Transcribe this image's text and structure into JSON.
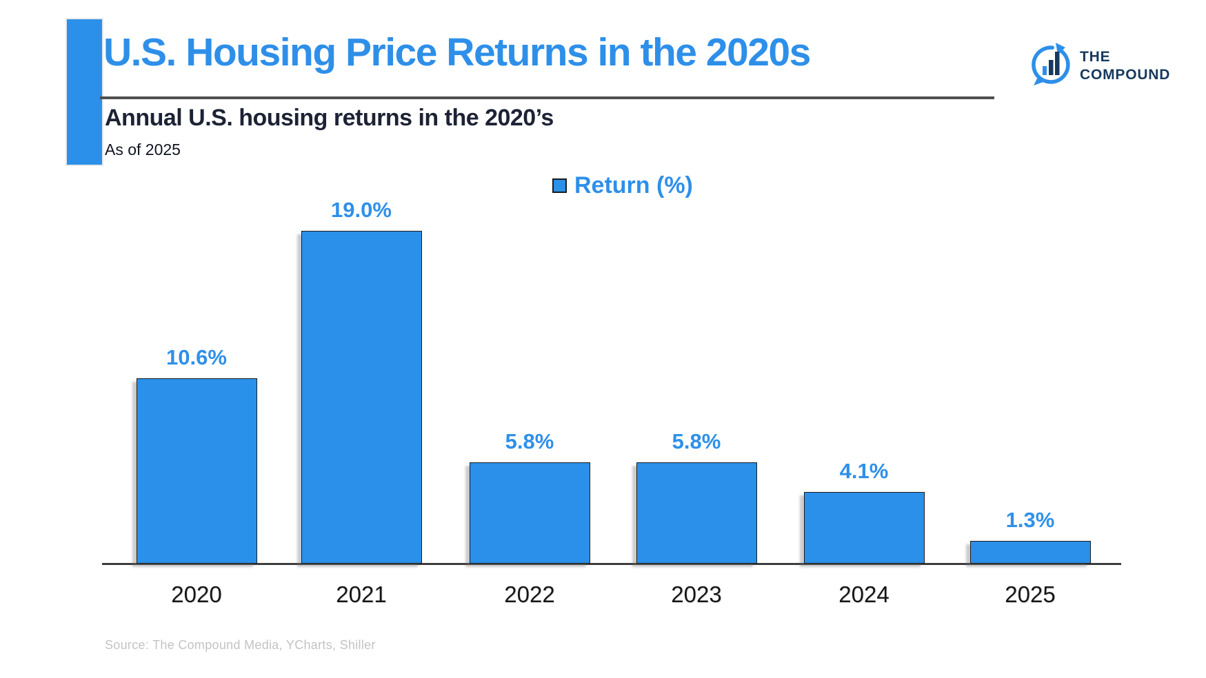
{
  "header": {
    "title": "U.S. Housing Price Returns in the 2020s",
    "subtitle": "Annual U.S. housing returns in the 2020’s",
    "as_of": "As of 2025"
  },
  "logo": {
    "line1": "THE",
    "line2": "COMPOUND",
    "icon": "speech-bubble-bar-chart-arrow"
  },
  "legend": {
    "label": "Return (%)"
  },
  "source": "Source: The Compound Media, YCharts, Shiller",
  "colors": {
    "bar_blue": "#2b90e9",
    "title_blue": "#2e8fe9",
    "logo_navy": "#17395d",
    "subtitle_navy": "#1d2235",
    "rule_gray": "#4f4f4f",
    "source_gray": "#c3c3c3"
  },
  "chart_data": {
    "type": "bar",
    "title": "U.S. Housing Price Returns in the 2020s",
    "subtitle": "Annual U.S. housing returns in the 2020’s",
    "series_name": "Return (%)",
    "categories": [
      "2020",
      "2021",
      "2022",
      "2023",
      "2024",
      "2025"
    ],
    "values": [
      10.6,
      19.0,
      5.8,
      5.8,
      4.1,
      1.3
    ],
    "value_labels": [
      "10.6%",
      "19.0%",
      "5.8%",
      "5.8%",
      "4.1%",
      "1.3%"
    ],
    "xlabel": "",
    "ylabel": "Return (%)",
    "ylim": [
      0,
      20
    ],
    "grid": false,
    "legend_position": "top-center",
    "bar_color": "#2b90e9"
  }
}
